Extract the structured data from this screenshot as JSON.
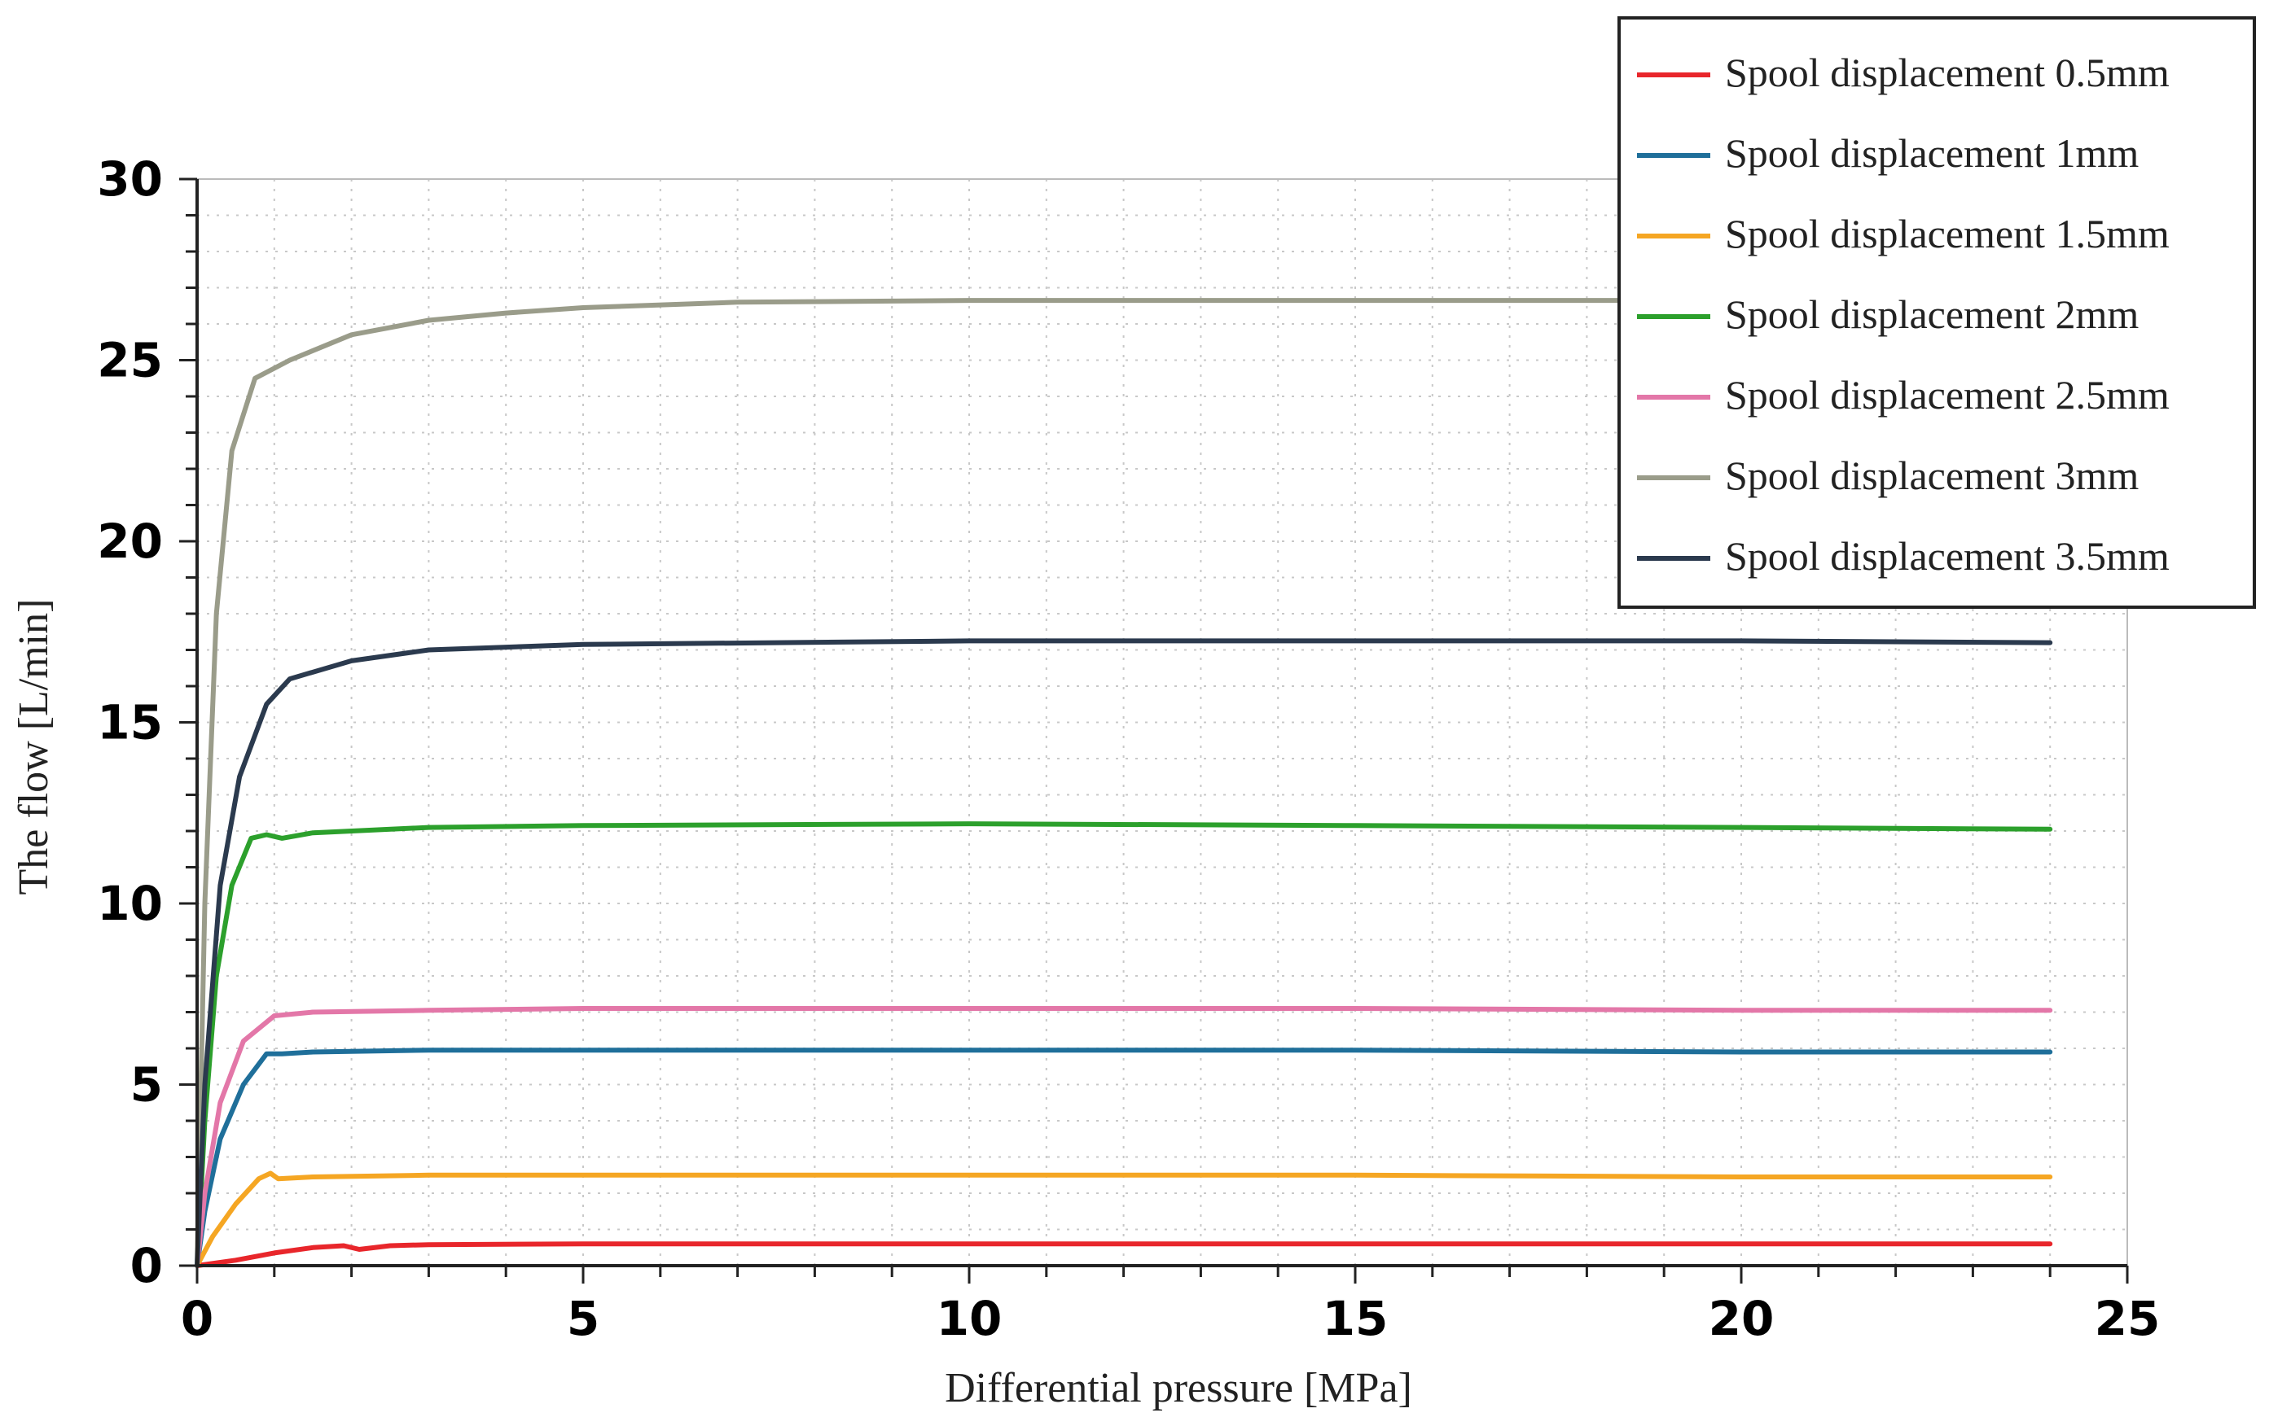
{
  "chart_data": {
    "type": "line",
    "xlabel": "Differential pressure [MPa]",
    "ylabel": "The flow  [L/min]",
    "xlim": [
      0,
      25
    ],
    "ylim": [
      0,
      30
    ],
    "xticks": [
      "0",
      "5",
      "10",
      "15",
      "20",
      "25"
    ],
    "yticks": [
      "0",
      "5",
      "10",
      "15",
      "20",
      "25",
      "30"
    ],
    "grid": true,
    "legend_position": "top-right",
    "series": [
      {
        "name": "Spool displacement 0.5mm",
        "color": "#e8262b",
        "points": [
          [
            0,
            0
          ],
          [
            0.5,
            0.15
          ],
          [
            1,
            0.35
          ],
          [
            1.5,
            0.5
          ],
          [
            1.9,
            0.55
          ],
          [
            2.1,
            0.45
          ],
          [
            2.5,
            0.55
          ],
          [
            3,
            0.58
          ],
          [
            5,
            0.6
          ],
          [
            10,
            0.6
          ],
          [
            15,
            0.6
          ],
          [
            20,
            0.6
          ],
          [
            24,
            0.6
          ]
        ]
      },
      {
        "name": "Spool displacement 1mm",
        "color": "#1f6f9a",
        "points": [
          [
            0,
            0
          ],
          [
            0.1,
            1.5
          ],
          [
            0.3,
            3.5
          ],
          [
            0.6,
            5.0
          ],
          [
            0.9,
            5.85
          ],
          [
            1.1,
            5.85
          ],
          [
            1.5,
            5.9
          ],
          [
            3,
            5.95
          ],
          [
            5,
            5.95
          ],
          [
            10,
            5.95
          ],
          [
            15,
            5.95
          ],
          [
            20,
            5.9
          ],
          [
            24,
            5.9
          ]
        ]
      },
      {
        "name": "Spool displacement 1.5mm",
        "color": "#f5a623",
        "points": [
          [
            0,
            0
          ],
          [
            0.2,
            0.8
          ],
          [
            0.5,
            1.7
          ],
          [
            0.8,
            2.4
          ],
          [
            0.95,
            2.55
          ],
          [
            1.05,
            2.4
          ],
          [
            1.5,
            2.45
          ],
          [
            3,
            2.5
          ],
          [
            5,
            2.5
          ],
          [
            10,
            2.5
          ],
          [
            15,
            2.5
          ],
          [
            20,
            2.45
          ],
          [
            24,
            2.45
          ]
        ]
      },
      {
        "name": "Spool displacement 2mm",
        "color": "#2ca02c",
        "points": [
          [
            0,
            0
          ],
          [
            0.1,
            4
          ],
          [
            0.25,
            8
          ],
          [
            0.45,
            10.5
          ],
          [
            0.7,
            11.8
          ],
          [
            0.9,
            11.9
          ],
          [
            1.1,
            11.8
          ],
          [
            1.5,
            11.95
          ],
          [
            3,
            12.1
          ],
          [
            5,
            12.15
          ],
          [
            10,
            12.2
          ],
          [
            15,
            12.15
          ],
          [
            20,
            12.1
          ],
          [
            24,
            12.05
          ]
        ]
      },
      {
        "name": "Spool displacement 2.5mm",
        "color": "#e377a8",
        "points": [
          [
            0,
            0
          ],
          [
            0.1,
            2
          ],
          [
            0.3,
            4.5
          ],
          [
            0.6,
            6.2
          ],
          [
            1.0,
            6.9
          ],
          [
            1.5,
            7.0
          ],
          [
            3,
            7.05
          ],
          [
            5,
            7.1
          ],
          [
            10,
            7.1
          ],
          [
            15,
            7.1
          ],
          [
            20,
            7.05
          ],
          [
            24,
            7.05
          ]
        ]
      },
      {
        "name": "Spool displacement 3mm",
        "color": "#9a9c8a",
        "points": [
          [
            0,
            0
          ],
          [
            0.1,
            10
          ],
          [
            0.25,
            18
          ],
          [
            0.45,
            22.5
          ],
          [
            0.75,
            24.5
          ],
          [
            1.2,
            25.0
          ],
          [
            2,
            25.7
          ],
          [
            3,
            26.1
          ],
          [
            4,
            26.3
          ],
          [
            5,
            26.45
          ],
          [
            7,
            26.6
          ],
          [
            10,
            26.65
          ],
          [
            15,
            26.65
          ],
          [
            20,
            26.65
          ],
          [
            24,
            26.65
          ]
        ]
      },
      {
        "name": "Spool displacement 3.5mm",
        "color": "#2b3a4e",
        "points": [
          [
            0,
            0
          ],
          [
            0.1,
            5
          ],
          [
            0.3,
            10.5
          ],
          [
            0.55,
            13.5
          ],
          [
            0.9,
            15.5
          ],
          [
            1.2,
            16.2
          ],
          [
            2,
            16.7
          ],
          [
            3,
            17.0
          ],
          [
            5,
            17.15
          ],
          [
            10,
            17.25
          ],
          [
            15,
            17.25
          ],
          [
            20,
            17.25
          ],
          [
            24,
            17.2
          ]
        ]
      }
    ]
  }
}
